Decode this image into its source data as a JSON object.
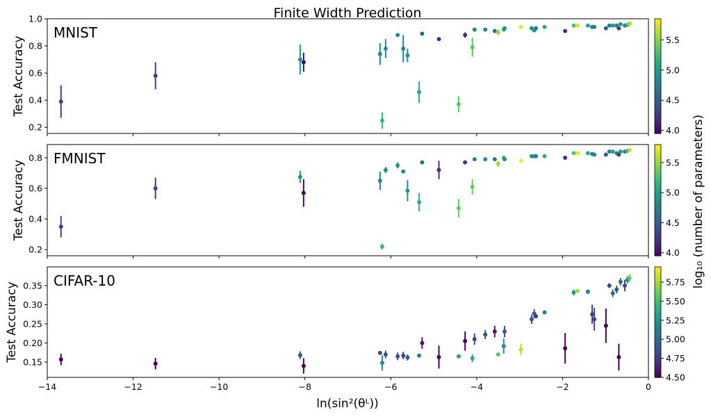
{
  "chart_data": {
    "type": "scatter",
    "title": "Finite Width Prediction",
    "xlabel": "ln(sin²(θᴸ))",
    "xlim": [
      -14,
      0
    ],
    "xticks": [
      -14,
      -12,
      -10,
      -8,
      -6,
      -4,
      -2,
      0
    ],
    "colorbar_label": "log₁₀ (number of parameters)",
    "colormap": "viridis",
    "grid": false,
    "x": [
      -13.68,
      -11.48,
      -8.11,
      -8.03,
      -6.25,
      -6.2,
      -6.12,
      -5.84,
      -5.71,
      -5.61,
      -5.34,
      -5.27,
      -4.88,
      -4.42,
      -4.27,
      -4.1,
      -4.05,
      -3.8,
      -3.58,
      -3.5,
      -3.37,
      -3.35,
      -2.97,
      -2.72,
      -2.66,
      -2.62,
      -2.42,
      -1.94,
      -1.74,
      -1.65,
      -1.41,
      -1.31,
      -1.26,
      -0.99,
      -0.91,
      -0.83,
      -0.74,
      -0.69,
      -0.65,
      -0.55,
      -0.49,
      -0.44
    ],
    "log10_params": [
      4.3,
      4.3,
      4.9,
      4.0,
      4.8,
      5.2,
      4.85,
      4.85,
      4.8,
      4.9,
      5.1,
      4.6,
      4.2,
      5.35,
      4.2,
      5.35,
      4.8,
      4.85,
      4.6,
      5.55,
      5.2,
      4.9,
      5.8,
      4.85,
      4.9,
      4.75,
      5.1,
      4.2,
      5.3,
      5.75,
      5.1,
      4.75,
      4.8,
      4.5,
      4.8,
      5.0,
      4.85,
      4.3,
      5.0,
      4.8,
      5.2,
      5.6
    ],
    "panels": [
      {
        "name": "MNIST",
        "ylabel": "Test Accuracy",
        "ylim": [
          0.155,
          1.0
        ],
        "yticks": [
          0.2,
          0.4,
          0.6,
          0.8,
          1.0
        ],
        "clim": [
          3.95,
          5.85
        ],
        "cticks": [
          4.0,
          4.5,
          5.0,
          5.5
        ],
        "y": [
          0.39,
          0.58,
          0.7,
          0.68,
          0.74,
          0.25,
          0.78,
          0.88,
          0.78,
          0.73,
          0.46,
          0.89,
          0.85,
          0.37,
          0.88,
          0.79,
          0.92,
          0.92,
          0.91,
          0.9,
          0.92,
          0.93,
          0.94,
          0.93,
          0.915,
          0.93,
          0.94,
          0.91,
          0.95,
          0.95,
          0.95,
          0.94,
          0.94,
          0.93,
          0.95,
          0.95,
          0.95,
          0.93,
          0.96,
          0.95,
          0.955,
          0.965
        ],
        "err": [
          0.12,
          0.1,
          0.11,
          0.07,
          0.08,
          0.06,
          0.07,
          0,
          0.1,
          0.05,
          0.08,
          0,
          0.01,
          0.06,
          0.02,
          0.07,
          0,
          0,
          0,
          0.02,
          0,
          0,
          0,
          0,
          0.01,
          0,
          0,
          0,
          0,
          0,
          0,
          0,
          0,
          0,
          0,
          0,
          0,
          0,
          0,
          0,
          0,
          0
        ]
      },
      {
        "name": "FMNIST",
        "ylabel": "Test Accuracy",
        "ylim": [
          0.16,
          0.886
        ],
        "yticks": [
          0.2,
          0.4,
          0.6,
          0.8
        ],
        "clim": [
          3.95,
          5.8
        ],
        "cticks": [
          4.0,
          4.5,
          5.0,
          5.5
        ],
        "y": [
          0.35,
          0.6,
          0.675,
          0.57,
          0.65,
          0.22,
          0.72,
          0.75,
          0.71,
          0.585,
          0.51,
          0.77,
          0.72,
          0.47,
          0.77,
          0.61,
          0.79,
          0.79,
          0.79,
          0.76,
          0.8,
          0.79,
          0.78,
          0.81,
          0.81,
          0.81,
          0.81,
          0.8,
          0.83,
          0.83,
          0.83,
          0.825,
          0.82,
          0.82,
          0.84,
          0.84,
          0.83,
          0.82,
          0.84,
          0.84,
          0.845,
          0.85
        ],
        "err": [
          0.07,
          0.07,
          0.04,
          0.09,
          0.06,
          0.02,
          0.02,
          0.02,
          0.01,
          0.07,
          0.06,
          0,
          0.06,
          0.06,
          0,
          0.05,
          0,
          0,
          0,
          0.02,
          0.01,
          0,
          0,
          0,
          0,
          0,
          0,
          0,
          0,
          0,
          0,
          0,
          0,
          0,
          0,
          0,
          0,
          0,
          0,
          0,
          0,
          0
        ]
      },
      {
        "name": "CIFAR-10",
        "ylabel": "Test Accuracy",
        "ylim": [
          0.11,
          0.399
        ],
        "yticks": [
          0.15,
          0.2,
          0.25,
          0.3,
          0.35
        ],
        "clim": [
          4.5,
          5.95
        ],
        "cticks": [
          4.5,
          4.75,
          5.0,
          5.25,
          5.5,
          5.75
        ],
        "y": [
          0.157,
          0.146,
          0.168,
          0.14,
          0.174,
          0.148,
          0.17,
          0.165,
          0.167,
          0.162,
          0.167,
          0.2,
          0.163,
          0.165,
          0.205,
          0.16,
          0.21,
          0.222,
          0.23,
          0.17,
          0.192,
          0.23,
          0.183,
          0.262,
          0.277,
          0.27,
          0.28,
          0.186,
          0.332,
          0.336,
          0.334,
          0.275,
          0.262,
          0.245,
          0.35,
          0.33,
          0.34,
          0.163,
          0.36,
          0.35,
          0.365,
          0.37
        ],
        "err": [
          0.015,
          0.015,
          0.01,
          0.02,
          0,
          0.02,
          0.01,
          0.01,
          0.01,
          0.008,
          0,
          0.015,
          0.03,
          0,
          0.025,
          0.01,
          0.015,
          0.012,
          0.015,
          0,
          0.02,
          0.015,
          0.015,
          0.012,
          0.012,
          0.005,
          0.004,
          0.04,
          0.008,
          0,
          0.006,
          0.025,
          0.03,
          0.045,
          0.006,
          0.01,
          0.01,
          0.035,
          0.01,
          0.015,
          0.01,
          0.01
        ]
      }
    ]
  }
}
